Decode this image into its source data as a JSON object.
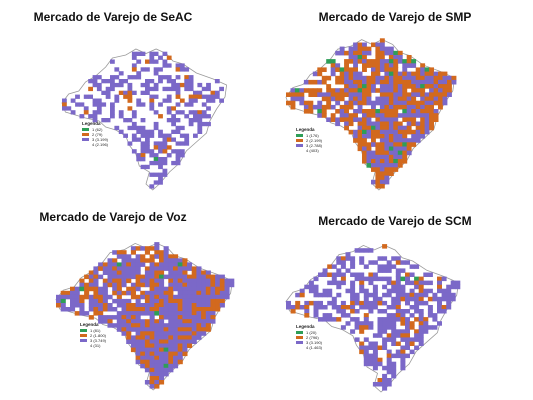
{
  "colors": {
    "green": "#2e9e57",
    "orange": "#d2691e",
    "purple": "#7b68c8",
    "outline": "#9a9a9a",
    "background": "#ffffff"
  },
  "legend_title": "Legenda",
  "panels": [
    {
      "title": "Mercado de Varejo de SeAC",
      "legend": [
        {
          "color": "green",
          "label": "1 (62)"
        },
        {
          "color": "orange",
          "label": "2 (79)"
        },
        {
          "color": "purple",
          "label": "3 (3.199)"
        },
        {
          "color": "none",
          "label": "4 (2.196)"
        }
      ],
      "coverage": {
        "purple": 0.45,
        "orange": 0.04,
        "green": 0.005
      }
    },
    {
      "title": "Mercado de Varejo de SMP",
      "legend": [
        {
          "color": "green",
          "label": "1 (176)"
        },
        {
          "color": "orange",
          "label": "2 (2.199)"
        },
        {
          "color": "purple",
          "label": "3 (2.788)"
        },
        {
          "color": "none",
          "label": "4 (403)"
        }
      ],
      "coverage": {
        "purple": 0.45,
        "orange": 0.45,
        "green": 0.03
      }
    },
    {
      "title": "Mercado de Varejo de Voz",
      "legend": [
        {
          "color": "green",
          "label": "1 (81)"
        },
        {
          "color": "orange",
          "label": "2 (1.800)"
        },
        {
          "color": "purple",
          "label": "3 (3.749)"
        },
        {
          "color": "none",
          "label": "4 (31)"
        }
      ],
      "coverage": {
        "purple": 0.68,
        "orange": 0.3,
        "green": 0.01
      }
    },
    {
      "title": "Mercado de Varejo de SCM",
      "legend": [
        {
          "color": "green",
          "label": "1 (20)"
        },
        {
          "color": "orange",
          "label": "2 (796)"
        },
        {
          "color": "purple",
          "label": "3 (3.190)"
        },
        {
          "color": "none",
          "label": "4 (1.463)"
        }
      ],
      "coverage": {
        "purple": 0.55,
        "orange": 0.08,
        "green": 0.004
      }
    }
  ]
}
